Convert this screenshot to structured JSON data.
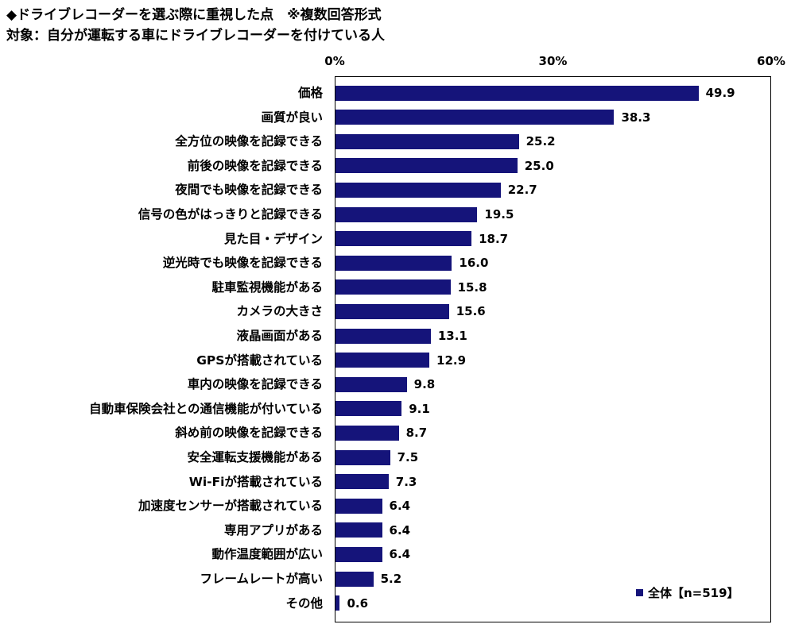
{
  "title_line1": "◆ドライブレコーダーを選ぶ際に重視した点　※複数回答形式",
  "title_line2": "対象：自分が運転する車にドライブレコーダーを付けている人",
  "colors": {
    "bar": "#15147a"
  },
  "chart_data": {
    "type": "bar",
    "orientation": "horizontal",
    "xlim": [
      0,
      60
    ],
    "ticks": [
      {
        "value": 0,
        "label": "0%"
      },
      {
        "value": 30,
        "label": "30%"
      },
      {
        "value": 60,
        "label": "60%"
      }
    ],
    "categories": [
      "価格",
      "画質が良い",
      "全方位の映像を記録できる",
      "前後の映像を記録できる",
      "夜間でも映像を記録できる",
      "信号の色がはっきりと記録できる",
      "見た目・デザイン",
      "逆光時でも映像を記録できる",
      "駐車監視機能がある",
      "カメラの大きさ",
      "液晶画面がある",
      "GPSが搭載されている",
      "車内の映像を記録できる",
      "自動車保険会社との通信機能が付いている",
      "斜め前の映像を記録できる",
      "安全運転支援機能がある",
      "Wi-Fiが搭載されている",
      "加速度センサーが搭載されている",
      "専用アプリがある",
      "動作温度範囲が広い",
      "フレームレートが高い",
      "その他"
    ],
    "series": [
      {
        "name": "全体【n=519】",
        "values": [
          49.9,
          38.3,
          25.2,
          25.0,
          22.7,
          19.5,
          18.7,
          16.0,
          15.8,
          15.6,
          13.1,
          12.9,
          9.8,
          9.1,
          8.7,
          7.5,
          7.3,
          6.4,
          6.4,
          6.4,
          5.2,
          0.6
        ],
        "labels": [
          "49.9",
          "38.3",
          "25.2",
          "25.0",
          "22.7",
          "19.5",
          "18.7",
          "16.0",
          "15.8",
          "15.6",
          "13.1",
          "12.9",
          "9.8",
          "9.1",
          "8.7",
          "7.5",
          "7.3",
          "6.4",
          "6.4",
          "6.4",
          "5.2",
          "0.6"
        ]
      }
    ],
    "legend_position": "bottom-right"
  }
}
